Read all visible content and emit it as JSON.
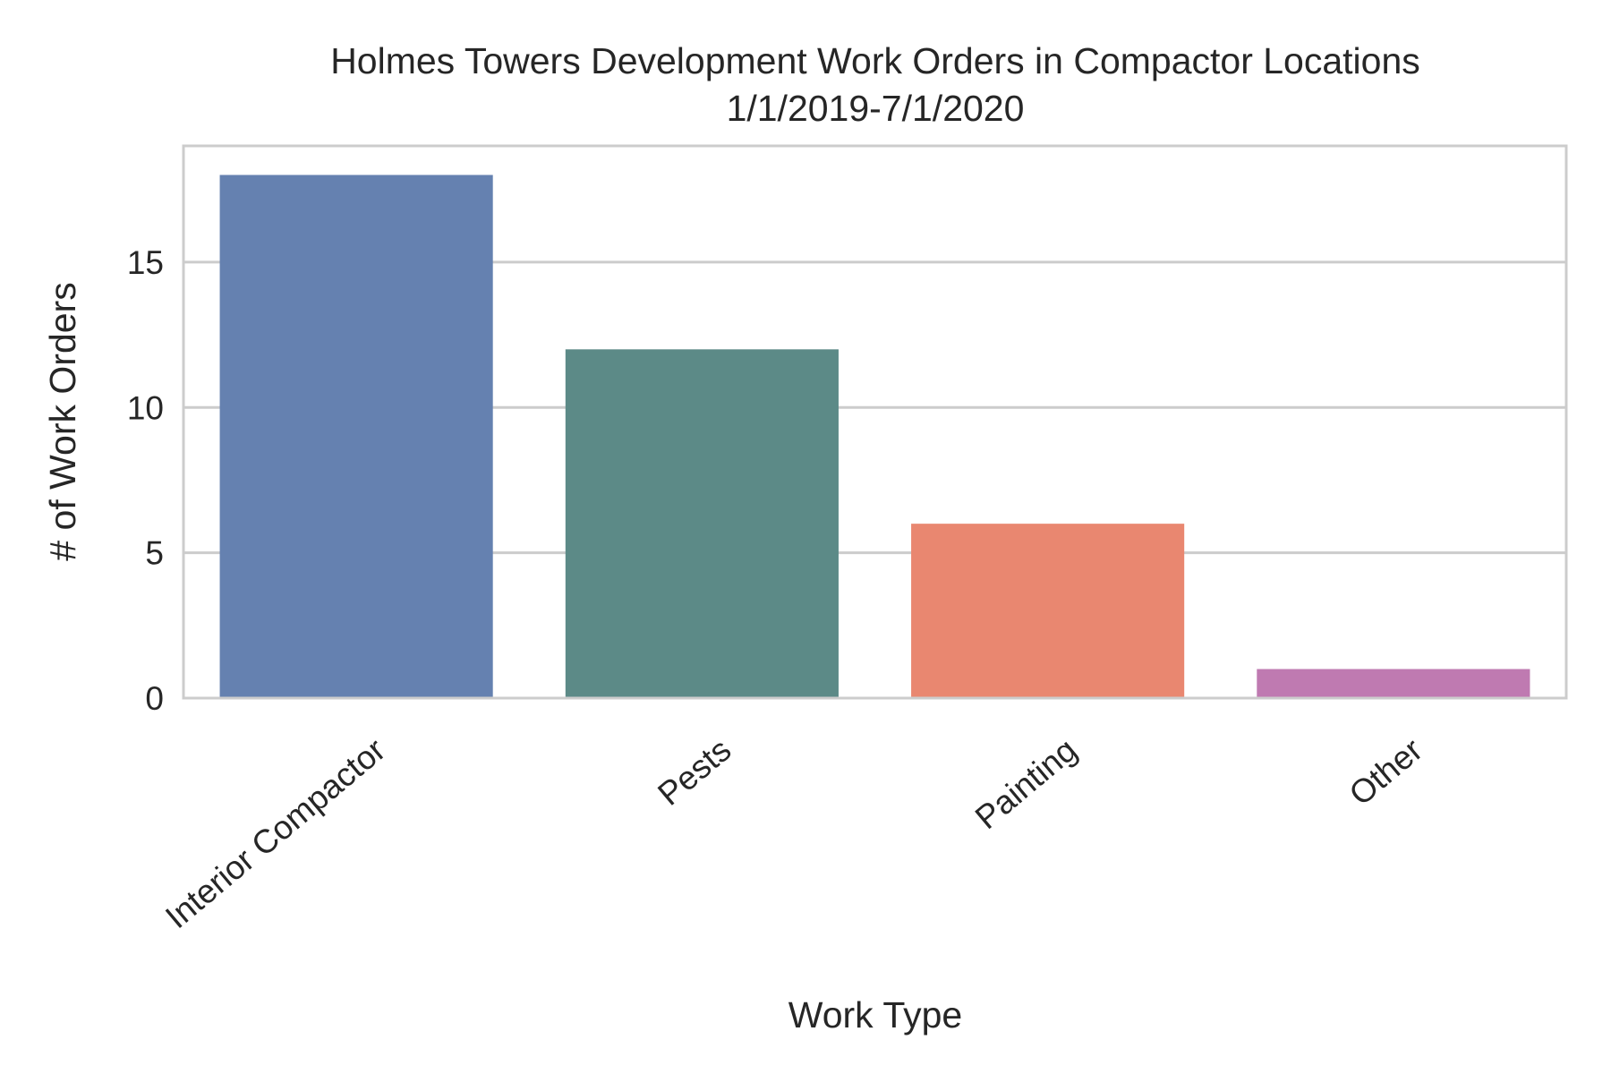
{
  "chart_data": {
    "type": "bar",
    "title": "Holmes Towers Development Work Orders in Compactor Locations",
    "subtitle": "1/1/2019-7/1/2020",
    "xlabel": "Work Type",
    "ylabel": "# of Work Orders",
    "categories": [
      "Interior Compactor",
      "Pests",
      "Painting",
      "Other"
    ],
    "values": [
      18,
      12,
      6,
      1
    ],
    "colors": [
      "#6581b0",
      "#5c8a87",
      "#e98770",
      "#bf7ab1"
    ],
    "ylim": [
      0,
      19
    ],
    "yticks": [
      0,
      5,
      10,
      15
    ],
    "grid": true,
    "legend": "none"
  }
}
